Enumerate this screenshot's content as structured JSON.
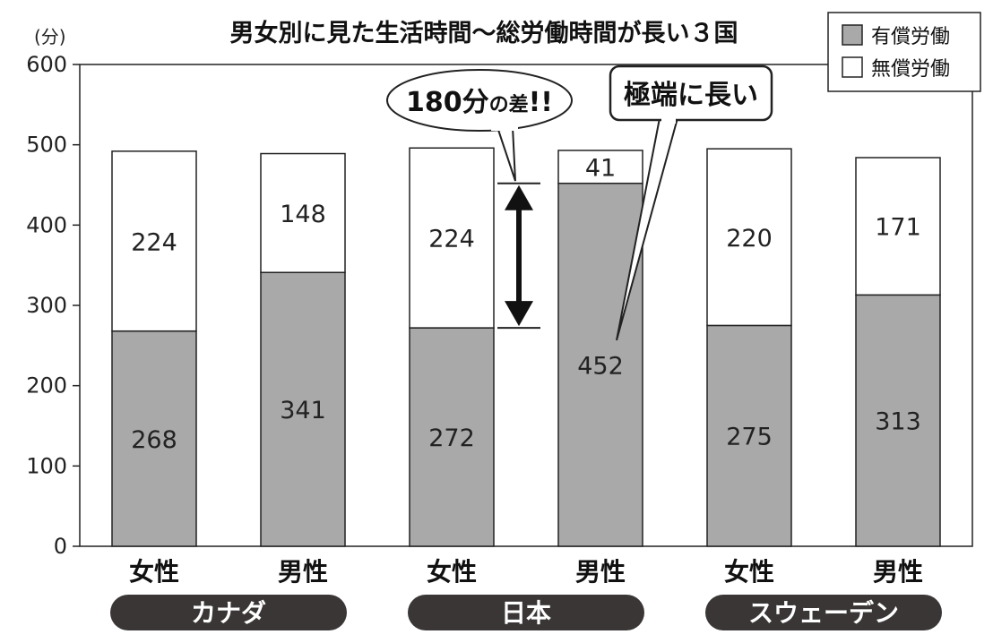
{
  "chart_data": {
    "type": "bar",
    "stacked": true,
    "title": "男女別に見た生活時間〜総労働時間が長い３国",
    "unit": "(分)",
    "ylim": [
      0,
      600
    ],
    "yticks": [
      "0",
      "100",
      "200",
      "300",
      "400",
      "500",
      "600"
    ],
    "categories": [
      "女性",
      "男性",
      "女性",
      "男性",
      "女性",
      "男性"
    ],
    "groups": [
      "カナダ",
      "日本",
      "スウェーデン"
    ],
    "series": [
      {
        "name": "有償労働",
        "color": "#a9a9a9",
        "values": [
          268,
          341,
          272,
          452,
          275,
          313
        ]
      },
      {
        "name": "無償労働",
        "color": "#ffffff",
        "values": [
          224,
          148,
          224,
          41,
          220,
          171
        ]
      }
    ],
    "annotations": {
      "difference": {
        "text_main": "180分",
        "text_small": "の差",
        "text_end": "!!"
      },
      "long": {
        "text": "極端に長い"
      }
    },
    "grid": false,
    "legend_position": "top-right"
  }
}
